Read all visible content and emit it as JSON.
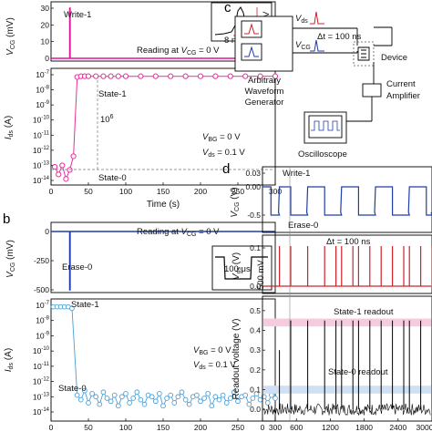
{
  "colors": {
    "pink": "#e0149a",
    "pink_marker": "#e8309c",
    "red": "#d0202a",
    "blue": "#1f3ea8",
    "light_blue": "#4aa0d8",
    "black": "#000000",
    "pink_band": "#f6cbe0",
    "blue_band": "#cfe0f4"
  },
  "panels": {
    "a": {
      "letter": ""
    },
    "b": {
      "letter": "b"
    },
    "c": {
      "letter": "c"
    },
    "d": {
      "letter": "d"
    }
  },
  "chart_data": [
    {
      "id": "a_top",
      "type": "line",
      "xlim": [
        0,
        300
      ],
      "ylim": [
        0,
        30
      ],
      "yticks": [
        "0",
        "10",
        "20",
        "30"
      ],
      "ylabel": "V_CG (mV)",
      "series": [
        {
          "name": "Write-1",
          "x": [
            0,
            25,
            25,
            25.5,
            25.5,
            300
          ],
          "y": [
            0,
            0,
            30,
            30,
            0,
            0
          ]
        }
      ],
      "annotations": {
        "write_label": "Write-1",
        "reading": "Reading at V_CG = 0 V",
        "inset_v": "30 mV",
        "inset_t": "8 ns"
      }
    },
    {
      "id": "a_bottom",
      "type": "scatter",
      "xlim": [
        0,
        300
      ],
      "ylim_log10": [
        -14,
        -7
      ],
      "yticks": [
        "10^-14",
        "10^-13",
        "10^-12",
        "10^-11",
        "10^-10",
        "10^-9",
        "10^-8",
        "10^-7"
      ],
      "xticks": [
        "0",
        "50",
        "100",
        "150",
        "200",
        "250",
        "300"
      ],
      "xlabel": "Time (s)",
      "ylabel": "I_ds (A)",
      "series": [
        {
          "name": "State-1",
          "x": [
            5,
            10,
            15,
            20,
            25,
            30,
            35,
            40,
            45,
            50,
            60,
            70,
            80,
            90,
            100,
            120,
            140,
            160,
            180,
            200,
            220,
            240,
            260,
            280,
            300
          ],
          "y_log10": [
            -13.1,
            -13.6,
            -13.0,
            -13.9,
            -13.3,
            -12.4,
            -7.15,
            -7.1,
            -7.1,
            -7.1,
            -7.1,
            -7.1,
            -7.1,
            -7.1,
            -7.1,
            -7.1,
            -7.1,
            -7.1,
            -7.1,
            -7.1,
            -7.1,
            -7.1,
            -7.1,
            -7.1,
            -7.1
          ]
        }
      ],
      "annotations": {
        "state1": "State-1",
        "state0": "State-0",
        "ratio": "10^6",
        "vbg": "V_BG = 0 V",
        "vds": "V_ds = 0.1 V"
      }
    },
    {
      "id": "b_top",
      "type": "line",
      "xlim": [
        0,
        300
      ],
      "ylim": [
        -500,
        0
      ],
      "yticks": [
        "-500",
        "-250",
        "0"
      ],
      "ylabel": "V_CG (mV)",
      "series": [
        {
          "name": "Erase-0",
          "x": [
            0,
            25,
            25,
            25.5,
            25.5,
            300
          ],
          "y": [
            0,
            0,
            -500,
            -500,
            0,
            0
          ]
        }
      ],
      "annotations": {
        "erase_label": "Erase-0",
        "reading": "Reading at V_CG = 0 V",
        "inset_t": "100 μs",
        "inset_v": "500 mV"
      }
    },
    {
      "id": "b_bottom",
      "type": "scatter",
      "xlim": [
        0,
        300
      ],
      "ylim_log10": [
        -14,
        -7
      ],
      "yticks": [
        "10^-14",
        "10^-13",
        "10^-12",
        "10^-11",
        "10^-10",
        "10^-9",
        "10^-8",
        "10^-7"
      ],
      "xticks": [
        "0",
        "50",
        "100",
        "150",
        "200",
        "250",
        "300"
      ],
      "xlabel": "",
      "ylabel": "I_ds (A)",
      "series": [
        {
          "name": "State-0",
          "x": [
            3,
            8,
            13,
            18,
            23,
            28,
            35,
            40,
            45,
            50,
            55,
            60,
            65,
            70,
            75,
            80,
            85,
            90,
            95,
            100,
            105,
            110,
            115,
            120,
            125,
            130,
            135,
            140,
            145,
            150,
            155,
            160,
            165,
            170,
            175,
            180,
            185,
            190,
            195,
            200,
            205,
            210,
            215,
            220,
            225,
            230,
            235,
            240,
            245,
            250,
            255,
            260,
            265,
            270,
            275,
            280,
            285,
            290,
            295,
            300
          ],
          "y_log10": [
            -7.1,
            -7.1,
            -7.1,
            -7.1,
            -7.1,
            -7.2,
            -12.9,
            -13.2,
            -12.6,
            -13.4,
            -12.8,
            -13.0,
            -13.5,
            -12.7,
            -13.1,
            -13.3,
            -12.9,
            -13.6,
            -13.0,
            -12.8,
            -13.4,
            -13.1,
            -12.7,
            -13.2,
            -13.5,
            -12.9,
            -13.0,
            -13.3,
            -12.8,
            -13.6,
            -13.1,
            -12.9,
            -13.4,
            -13.0,
            -12.7,
            -13.2,
            -13.5,
            -13.0,
            -12.9,
            -13.3,
            -13.1,
            -12.8,
            -13.6,
            -13.0,
            -13.2,
            -12.9,
            -13.4,
            -13.1,
            -12.7,
            -13.3,
            -13.0,
            -12.9,
            -13.5,
            -13.1,
            -12.8,
            -13.2,
            -13.0,
            -13.4,
            -12.9,
            -13.1
          ]
        }
      ],
      "annotations": {
        "state1": "State-1",
        "state0": "State-0",
        "vbg": "V_BG = 0 V",
        "vds": "V_ds = 0.1 V"
      }
    },
    {
      "id": "d_top",
      "type": "line",
      "xlim": [
        0,
        3000
      ],
      "ylim": [
        -0.6,
        0.05
      ],
      "yticks": [
        "-0.5",
        "0.00",
        "0.03"
      ],
      "ylabel": "V_CG (V)",
      "annotations": {
        "write": "Write-1",
        "erase": "Erase-0"
      }
    },
    {
      "id": "d_mid",
      "type": "line",
      "xlim": [
        0,
        3000
      ],
      "ylim": [
        0,
        0.12
      ],
      "yticks": [
        "0.0",
        "0.1"
      ],
      "ylabel": "V_ds (V)",
      "annotations": {
        "dt": "Δt = 100 ns"
      }
    },
    {
      "id": "d_bottom",
      "type": "line",
      "xlim": [
        0,
        3000
      ],
      "ylim": [
        -0.05,
        0.55
      ],
      "xticks": [
        "0",
        "600",
        "1200",
        "1800",
        "2400",
        "3000"
      ],
      "yticks": [
        "0.0",
        "0.1",
        "0.2",
        "0.3",
        "0.4",
        "0.5"
      ],
      "ylabel": "Readout voltage (V)",
      "spike_x": [
        300,
        500,
        800,
        1100,
        1300,
        1400,
        1600,
        1700,
        1900,
        2100,
        2300,
        2500,
        2600,
        2800,
        3000
      ],
      "spike_y": [
        0.3,
        0.45,
        0.45,
        0.45,
        0.45,
        0.45,
        0.45,
        0.45,
        0.45,
        0.45,
        0.45,
        0.45,
        0.45,
        0.45,
        0.45
      ],
      "annotations": {
        "state1": "State-1 readout",
        "state0": "State-0 readout",
        "state1_level": 0.44,
        "state0_level": 0.1
      }
    }
  ],
  "schematic": {
    "awg": "Arbitrary Waveform Generator",
    "awg_l1": "Arbitrary",
    "awg_l2": "Waveform",
    "awg_l3": "Generator",
    "vds": "V_ds",
    "vcg": "V_CG",
    "dt": "Δt = 100 ns",
    "device": "Device",
    "amp_l1": "Current",
    "amp_l2": "Amplifier",
    "scope": "Oscilloscope"
  }
}
